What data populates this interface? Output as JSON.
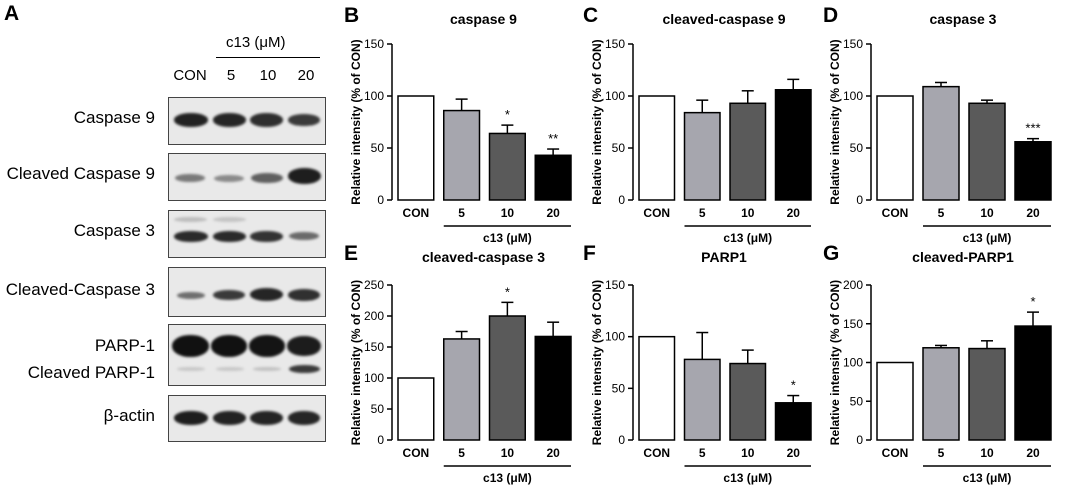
{
  "panel_a": {
    "letter": "A",
    "treatment_label": "c13 (μM)",
    "lanes": [
      "CON",
      "5",
      "10",
      "20"
    ],
    "rows": [
      {
        "label": "Caspase 9"
      },
      {
        "label": "Cleaved Caspase 9"
      },
      {
        "label": "Caspase 3"
      },
      {
        "label": "Cleaved-Caspase 3"
      },
      {
        "label": "PARP-1",
        "label2": "Cleaved PARP-1"
      },
      {
        "label": "β-actin"
      }
    ]
  },
  "chart_data": [
    {
      "letter": "B",
      "type": "bar",
      "title": "caspase 9",
      "ylabel": "Relative intensity  (% of CON)",
      "xlabel": "c13 (μM)",
      "categories": [
        "CON",
        "5",
        "10",
        "20"
      ],
      "values": [
        100,
        86,
        64,
        43
      ],
      "errors": [
        0,
        11,
        8,
        6
      ],
      "ylim": [
        0,
        150
      ],
      "yticks": [
        0,
        50,
        100,
        150
      ],
      "annotations": [
        "",
        "",
        "*",
        "**"
      ],
      "colors": [
        "#ffffff",
        "#a6a6ae",
        "#5a5a5a",
        "#000000"
      ]
    },
    {
      "letter": "C",
      "type": "bar",
      "title": "cleaved-caspase 9",
      "ylabel": "Relative intensity  (% of CON)",
      "xlabel": "c13 (μM)",
      "categories": [
        "CON",
        "5",
        "10",
        "20"
      ],
      "values": [
        100,
        84,
        93,
        106
      ],
      "errors": [
        0,
        12,
        12,
        10
      ],
      "ylim": [
        0,
        150
      ],
      "yticks": [
        0,
        50,
        100,
        150
      ],
      "annotations": [
        "",
        "",
        "",
        ""
      ],
      "colors": [
        "#ffffff",
        "#a6a6ae",
        "#5a5a5a",
        "#000000"
      ]
    },
    {
      "letter": "D",
      "type": "bar",
      "title": "caspase 3",
      "ylabel": "Relative intensity  (% of CON)",
      "xlabel": "c13 (μM)",
      "categories": [
        "CON",
        "5",
        "10",
        "20"
      ],
      "values": [
        100,
        109,
        93,
        56
      ],
      "errors": [
        0,
        4,
        3,
        3
      ],
      "ylim": [
        0,
        150
      ],
      "yticks": [
        0,
        50,
        100,
        150
      ],
      "annotations": [
        "",
        "",
        "",
        "***"
      ],
      "colors": [
        "#ffffff",
        "#a6a6ae",
        "#5a5a5a",
        "#000000"
      ]
    },
    {
      "letter": "E",
      "type": "bar",
      "title": "cleaved-caspase 3",
      "ylabel": "Relative intensity  (% of CON)",
      "xlabel": "c13 (μM)",
      "categories": [
        "CON",
        "5",
        "10",
        "20"
      ],
      "values": [
        100,
        163,
        200,
        167
      ],
      "errors": [
        0,
        12,
        22,
        23
      ],
      "ylim": [
        0,
        250
      ],
      "yticks": [
        0,
        50,
        100,
        150,
        200,
        250
      ],
      "annotations": [
        "",
        "",
        "*",
        ""
      ],
      "colors": [
        "#ffffff",
        "#a6a6ae",
        "#5a5a5a",
        "#000000"
      ]
    },
    {
      "letter": "F",
      "type": "bar",
      "title": "PARP1",
      "ylabel": "Relative intensity  (% of CON)",
      "xlabel": "c13 (μM)",
      "categories": [
        "CON",
        "5",
        "10",
        "20"
      ],
      "values": [
        100,
        78,
        74,
        36
      ],
      "errors": [
        0,
        26,
        13,
        7
      ],
      "ylim": [
        0,
        150
      ],
      "yticks": [
        0,
        50,
        100,
        150
      ],
      "annotations": [
        "",
        "",
        "",
        "*"
      ],
      "colors": [
        "#ffffff",
        "#a6a6ae",
        "#5a5a5a",
        "#000000"
      ]
    },
    {
      "letter": "G",
      "type": "bar",
      "title": "cleaved-PARP1",
      "ylabel": "Relative intensity  (% of CON)",
      "xlabel": "c13 (μM)",
      "categories": [
        "CON",
        "5",
        "10",
        "20"
      ],
      "values": [
        100,
        119,
        118,
        147
      ],
      "errors": [
        0,
        3,
        10,
        18
      ],
      "ylim": [
        0,
        200
      ],
      "yticks": [
        0,
        50,
        100,
        150,
        200
      ],
      "annotations": [
        "",
        "",
        "",
        "*"
      ],
      "colors": [
        "#ffffff",
        "#a6a6ae",
        "#5a5a5a",
        "#000000"
      ]
    }
  ]
}
